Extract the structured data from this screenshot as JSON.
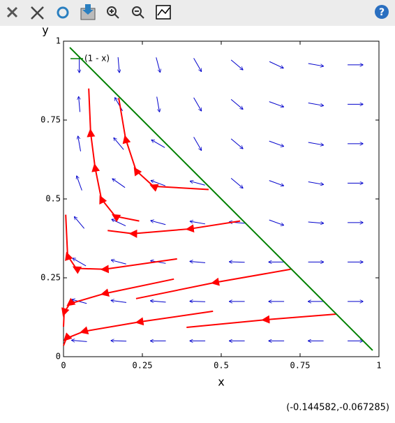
{
  "chart_data": {
    "type": "quiver",
    "xlabel": "x",
    "ylabel": "y",
    "xlim": [
      0,
      1
    ],
    "ylim": [
      0,
      1
    ],
    "xticks": [
      0,
      0.25,
      0.5,
      0.75,
      1
    ],
    "yticks": [
      0,
      0.25,
      0.5,
      0.75,
      1
    ],
    "series": [
      {
        "name": "(1 - x)",
        "color": "#008000",
        "x": [
          0.02,
          0.98
        ],
        "values": [
          0.98,
          0.02
        ]
      }
    ],
    "trajectory_color": "#ff0000",
    "trajectories": [
      {
        "x": [
          0.46,
          0.285,
          0.23,
          0.197,
          0.175
        ],
        "values": [
          0.53,
          0.54,
          0.59,
          0.69,
          0.82
        ]
      },
      {
        "x": [
          0.24,
          0.164,
          0.12,
          0.1,
          0.086,
          0.08
        ],
        "values": [
          0.43,
          0.445,
          0.5,
          0.6,
          0.71,
          0.85
        ]
      },
      {
        "x": [
          0.56,
          0.4,
          0.22,
          0.14
        ],
        "values": [
          0.43,
          0.405,
          0.39,
          0.4
        ]
      },
      {
        "x": [
          0.36,
          0.13,
          0.04,
          0.013,
          0.007
        ],
        "values": [
          0.31,
          0.277,
          0.28,
          0.32,
          0.45
        ]
      },
      {
        "x": [
          0.72,
          0.48,
          0.23
        ],
        "values": [
          0.277,
          0.235,
          0.184
        ]
      },
      {
        "x": [
          0.35,
          0.13,
          0.02,
          0.002,
          0
        ],
        "values": [
          0.246,
          0.2,
          0.168,
          0.14,
          0.095
        ]
      },
      {
        "x": [
          0.865,
          0.64,
          0.39
        ],
        "values": [
          0.135,
          0.117,
          0.093
        ]
      },
      {
        "x": [
          0.474,
          0.24,
          0.064,
          0.009,
          0
        ],
        "values": [
          0.144,
          0.11,
          0.08,
          0.058,
          0.035
        ]
      }
    ],
    "quiver": {
      "color": "#0000cc",
      "x": [
        0.05,
        0.175,
        0.3,
        0.425,
        0.55,
        0.675,
        0.8,
        0.925
      ],
      "y": [
        0.05,
        0.175,
        0.3,
        0.425,
        0.55,
        0.675,
        0.8,
        0.925
      ],
      "angles": [
        [
          175,
          178,
          180,
          180,
          180,
          180,
          180,
          0
        ],
        [
          165,
          172,
          175,
          178,
          180,
          180,
          180,
          0
        ],
        [
          150,
          165,
          170,
          175,
          178,
          180,
          0,
          0
        ],
        [
          130,
          155,
          165,
          170,
          175,
          -20,
          -5,
          0
        ],
        [
          110,
          145,
          160,
          165,
          -40,
          -20,
          -10,
          0
        ],
        [
          100,
          130,
          150,
          -60,
          -40,
          -20,
          -10,
          0
        ],
        [
          95,
          120,
          -80,
          -60,
          -40,
          -20,
          -10,
          0
        ],
        [
          -90,
          -85,
          -75,
          -60,
          -40,
          -25,
          -10,
          0
        ]
      ]
    },
    "legend": "upper left"
  },
  "status": "(-0.144582,-0.067285)"
}
